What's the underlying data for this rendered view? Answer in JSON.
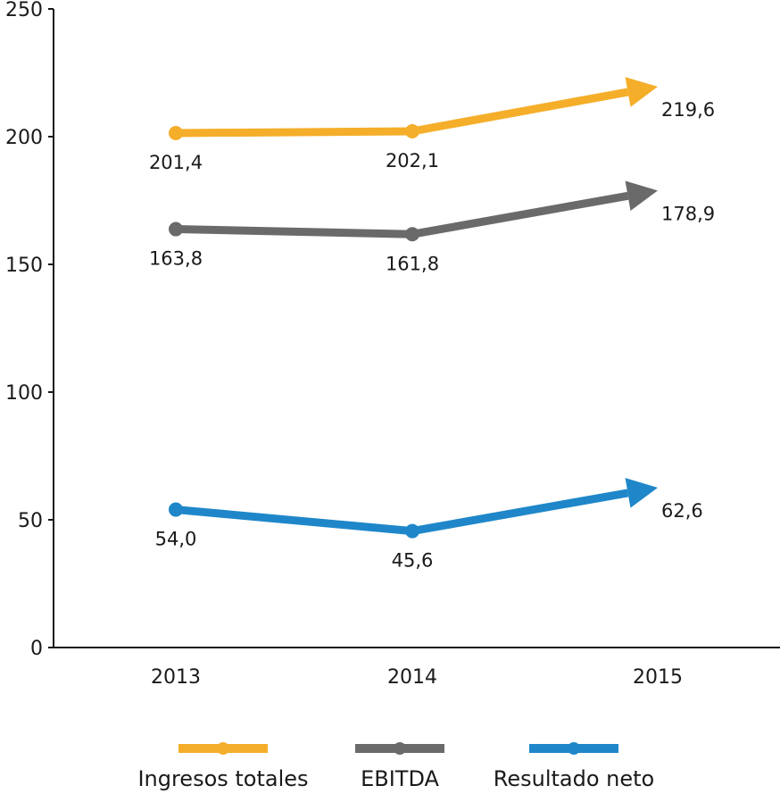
{
  "chart_data": {
    "type": "line",
    "categories": [
      "2013",
      "2014",
      "2015"
    ],
    "ylim": [
      0,
      250
    ],
    "yticks": [
      0,
      50,
      100,
      150,
      200,
      250
    ],
    "grid": false,
    "legend_position": "bottom",
    "series": [
      {
        "name": "Ingresos totales",
        "values": [
          201.4,
          202.1,
          219.6
        ],
        "labels": [
          "201,4",
          "202,1",
          "219,6"
        ],
        "color": "#F5AE2A"
      },
      {
        "name": "EBITDA",
        "values": [
          163.8,
          161.8,
          178.9
        ],
        "labels": [
          "163,8",
          "161,8",
          "178,9"
        ],
        "color": "#6A6A6A"
      },
      {
        "name": "Resultado neto",
        "values": [
          54.0,
          45.6,
          62.6
        ],
        "labels": [
          "54,0",
          "45,6",
          "62,6"
        ],
        "color": "#1F87C9"
      }
    ]
  }
}
